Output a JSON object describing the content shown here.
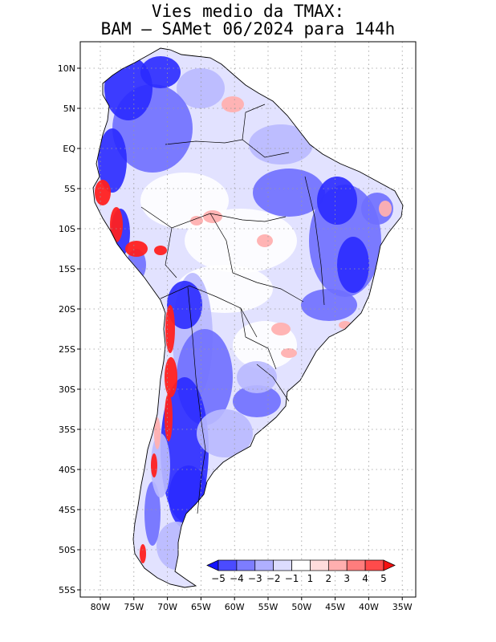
{
  "title": {
    "line1": "Vies medio da TMAX:",
    "line2": "BAM – SAMet 06/2024  para 144h"
  },
  "axes": {
    "lat_labels": [
      "10N",
      "5N",
      "EQ",
      "5S",
      "10S",
      "15S",
      "20S",
      "25S",
      "30S",
      "35S",
      "40S",
      "45S",
      "50S",
      "55S"
    ],
    "lat_values": [
      10,
      5,
      0,
      -5,
      -10,
      -15,
      -20,
      -25,
      -30,
      -35,
      -40,
      -45,
      -50,
      -55
    ],
    "lon_labels": [
      "80W",
      "75W",
      "70W",
      "65W",
      "60W",
      "55W",
      "50W",
      "45W",
      "40W",
      "35W"
    ],
    "lon_values": [
      -80,
      -75,
      -70,
      -65,
      -60,
      -55,
      -50,
      -45,
      -40,
      -35
    ]
  },
  "colorbar": {
    "labels": [
      "−5",
      "−4",
      "−3",
      "−2",
      "−1",
      "1",
      "2",
      "3",
      "4",
      "5"
    ],
    "colors": [
      "#1414ff",
      "#4b4bff",
      "#7d7dff",
      "#afafff",
      "#dcdcff",
      "#ffffff",
      "#ffdcdc",
      "#ffafaf",
      "#ff7d7d",
      "#ff4b4b",
      "#f51010"
    ]
  },
  "palette": {
    "deep_blue": "#2a2aff",
    "mid_blue": "#6f6fff",
    "light_blue": "#b9b9ff",
    "pale_blue": "#e2e2ff",
    "red": "#ff2020",
    "pink": "#ffb0b0"
  }
}
